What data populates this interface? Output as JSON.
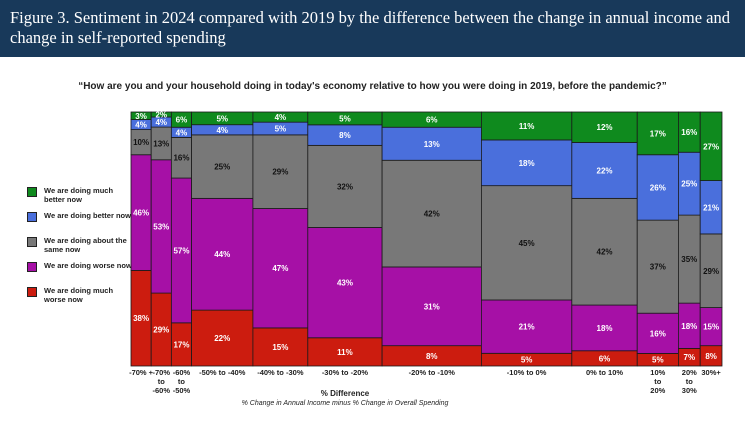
{
  "header": {
    "title": "Figure 3. Sentiment in 2024 compared with 2019 by the difference between the change in annual income and change in self-reported spending"
  },
  "chart_data": {
    "type": "bar",
    "subtype": "marimekko-100-percent-stacked",
    "title": "“How are you and your household doing in today's economy relative to how you were doing in 2019, before the pandemic?”",
    "xlabel": "% Difference",
    "xsublabel": "% Change in Annual Income minus % Change in Overall Spending",
    "categories": [
      [
        "-70% +"
      ],
      [
        "-70%",
        "to",
        "-60%"
      ],
      [
        "-60%",
        "to",
        "-50%"
      ],
      [
        "-50% to -40%"
      ],
      [
        "-40% to -30%"
      ],
      [
        "-30% to -20%"
      ],
      [
        "-20% to -10%"
      ],
      [
        "-10% to 0%"
      ],
      [
        "0% to 10%"
      ],
      [
        "10%",
        "to",
        "20%"
      ],
      [
        "20%",
        "to",
        "30%"
      ],
      [
        "30%+"
      ]
    ],
    "column_width_share": [
      2.5,
      2.5,
      2.5,
      7.6,
      6.8,
      9.2,
      12.3,
      11.2,
      8.1,
      5.1,
      2.7,
      2.7
    ],
    "series": [
      {
        "name": "We are doing much worse now",
        "color": "#cc1c0f",
        "values": [
          38,
          29,
          17,
          22,
          15,
          11,
          8,
          5,
          6,
          5,
          7,
          8
        ]
      },
      {
        "name": "We are doing worse now",
        "color": "#a610a6",
        "values": [
          46,
          53,
          57,
          44,
          47,
          43,
          31,
          21,
          18,
          16,
          18,
          15
        ]
      },
      {
        "name": "We are doing about the same now",
        "color": "#787878",
        "values": [
          10,
          13,
          16,
          25,
          29,
          32,
          42,
          45,
          42,
          37,
          35,
          29
        ]
      },
      {
        "name": "We are doing better now",
        "color": "#4a6fdc",
        "values": [
          4,
          4,
          4,
          4,
          5,
          8,
          13,
          18,
          22,
          26,
          25,
          21
        ]
      },
      {
        "name": "We are doing much better now",
        "color": "#0f8a1e",
        "values": [
          3,
          2,
          6,
          5,
          4,
          5,
          6,
          11,
          12,
          17,
          16,
          27
        ]
      }
    ],
    "value_suffix": "%",
    "ylim": [
      0,
      100
    ],
    "grid": false,
    "legend_position": "left"
  }
}
